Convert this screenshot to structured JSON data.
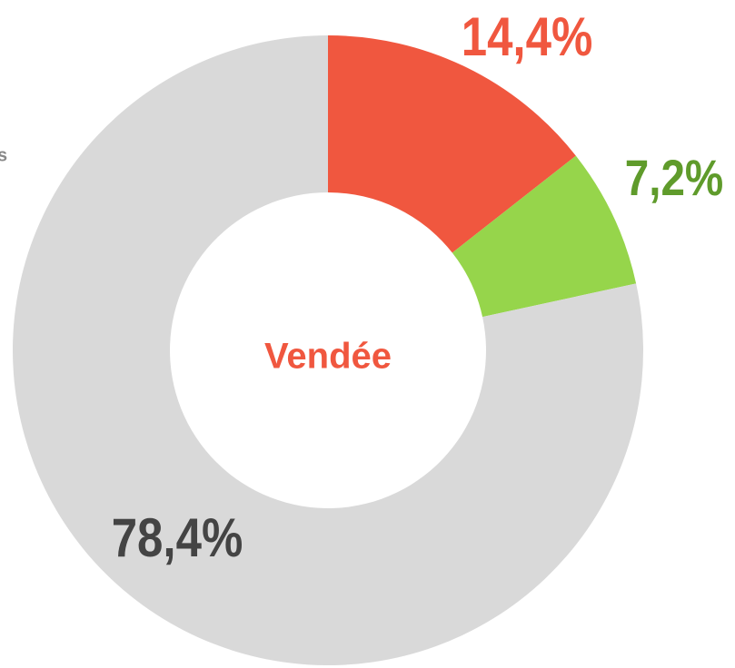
{
  "chart_data": {
    "type": "donut",
    "center_label": "Vendée",
    "annotation": "s",
    "categories": [
      null,
      null,
      null
    ],
    "values": [
      14.4,
      7.2,
      78.4
    ],
    "value_labels": [
      "14,4%",
      "7,2%",
      "78,4%"
    ],
    "colors": [
      "#f0573f",
      "#96d54b",
      "#d9d9d9"
    ],
    "label_colors": [
      "#f0573f",
      "#5f9b2b",
      "#444444"
    ]
  }
}
